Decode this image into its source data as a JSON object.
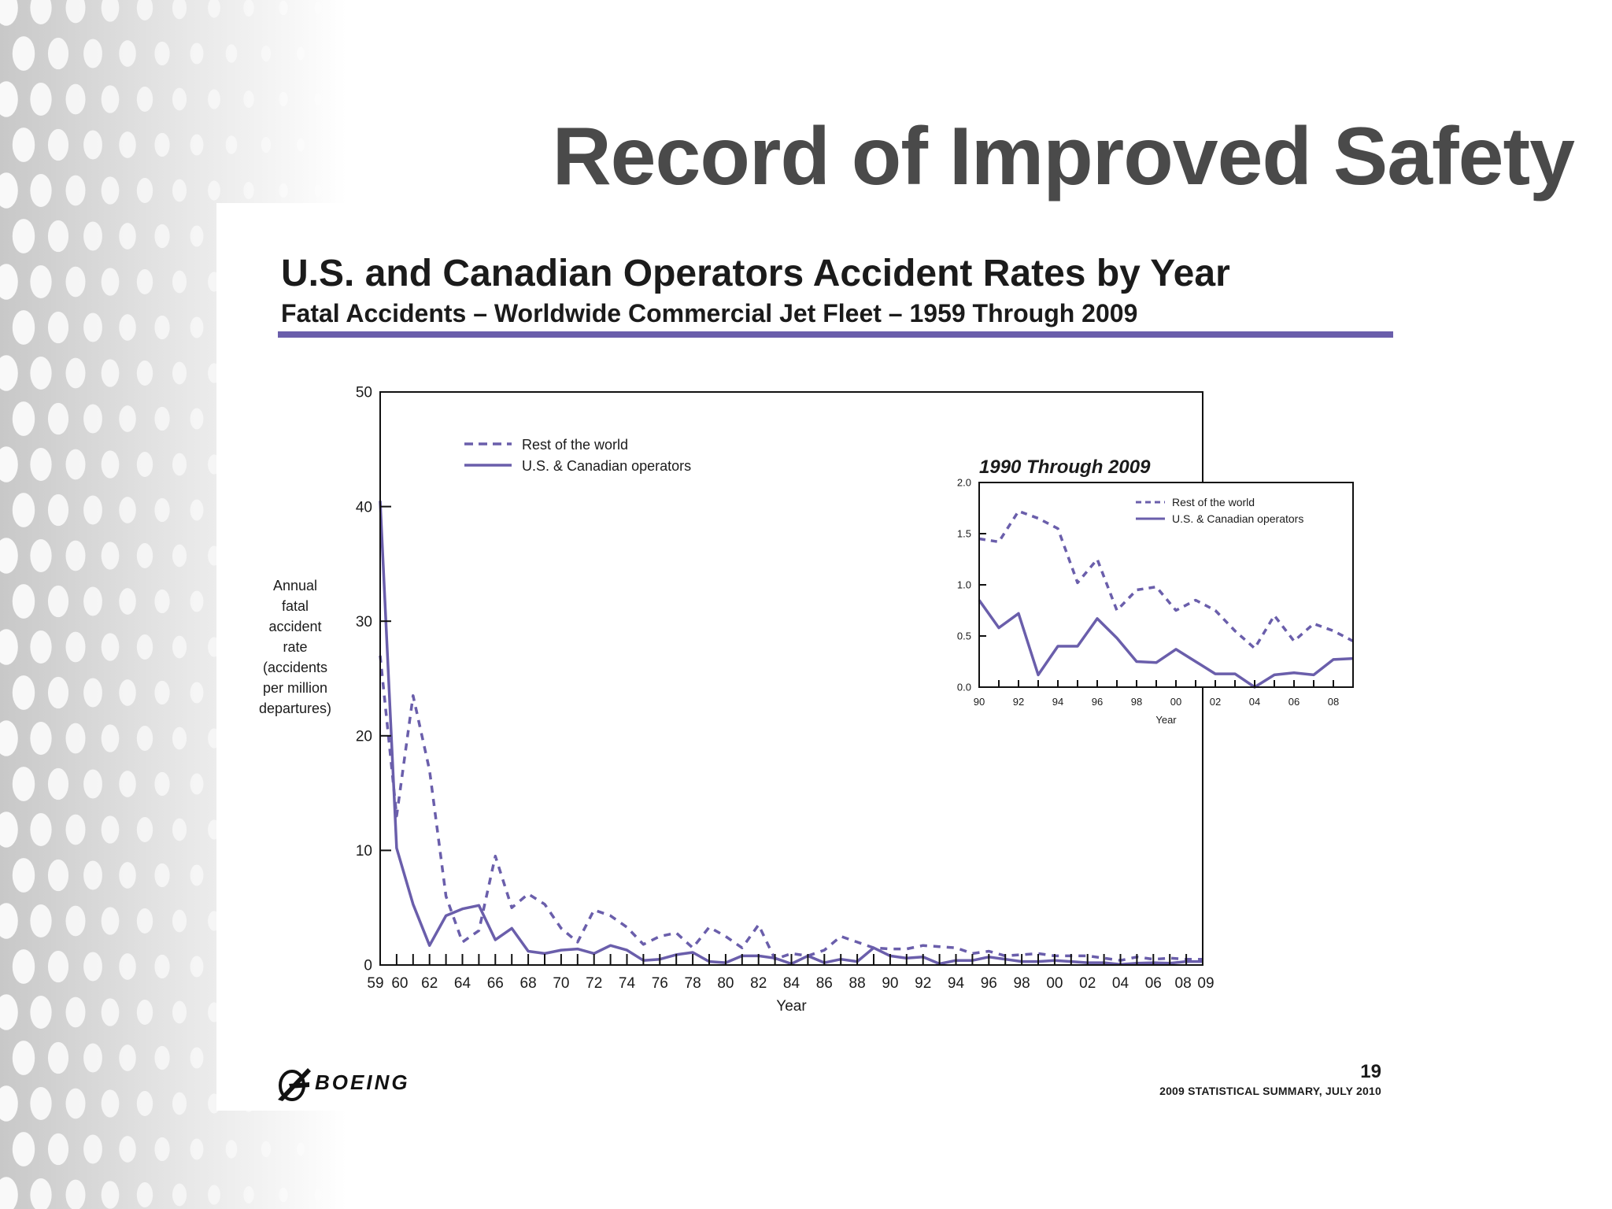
{
  "slide": {
    "title": "Record of Improved Safety"
  },
  "panel": {
    "title": "U.S. and Canadian Operators Accident Rates by Year",
    "subtitle": "Fatal Accidents – Worldwide Commercial Jet Fleet – 1959 Through 2009",
    "accent_color": "#6a5eab"
  },
  "footer": {
    "page_number": "19",
    "note": "2009 STATISTICAL SUMMARY, JULY 2010",
    "logo_text": "BOEING"
  },
  "chart_data": [
    {
      "type": "line",
      "title": "",
      "xlabel": "Year",
      "ylabel_lines": [
        "Annual",
        "fatal",
        "accident",
        "rate",
        "(accidents",
        "per million",
        "departures)"
      ],
      "ylim": [
        0,
        50
      ],
      "xlim": [
        1959,
        2009
      ],
      "y_ticks": [
        0,
        10,
        20,
        30,
        40,
        50
      ],
      "x_tick_labels": [
        {
          "year": 1959,
          "label": "59"
        },
        {
          "year": 1960,
          "label": "60"
        },
        {
          "year": 1962,
          "label": "62"
        },
        {
          "year": 1964,
          "label": "64"
        },
        {
          "year": 1966,
          "label": "66"
        },
        {
          "year": 1968,
          "label": "68"
        },
        {
          "year": 1970,
          "label": "70"
        },
        {
          "year": 1972,
          "label": "72"
        },
        {
          "year": 1974,
          "label": "74"
        },
        {
          "year": 1976,
          "label": "76"
        },
        {
          "year": 1978,
          "label": "78"
        },
        {
          "year": 1980,
          "label": "80"
        },
        {
          "year": 1982,
          "label": "82"
        },
        {
          "year": 1984,
          "label": "84"
        },
        {
          "year": 1986,
          "label": "86"
        },
        {
          "year": 1988,
          "label": "88"
        },
        {
          "year": 1990,
          "label": "90"
        },
        {
          "year": 1992,
          "label": "92"
        },
        {
          "year": 1994,
          "label": "94"
        },
        {
          "year": 1996,
          "label": "96"
        },
        {
          "year": 1998,
          "label": "98"
        },
        {
          "year": 2000,
          "label": "00"
        },
        {
          "year": 2002,
          "label": "02"
        },
        {
          "year": 2004,
          "label": "04"
        },
        {
          "year": 2006,
          "label": "06"
        },
        {
          "year": 2008,
          "label": "08"
        },
        {
          "year": 2009,
          "label": "09"
        }
      ],
      "legend_position": "top-left",
      "series": [
        {
          "name": "Rest of the world",
          "style": "dashed",
          "color": "#6a5eab",
          "x": [
            1959,
            1960,
            1961,
            1962,
            1963,
            1964,
            1965,
            1966,
            1967,
            1968,
            1969,
            1970,
            1971,
            1972,
            1973,
            1974,
            1975,
            1976,
            1977,
            1978,
            1979,
            1980,
            1981,
            1982,
            1983,
            1984,
            1985,
            1986,
            1987,
            1988,
            1989,
            1990,
            1991,
            1992,
            1993,
            1994,
            1995,
            1996,
            1997,
            1998,
            1999,
            2000,
            2001,
            2002,
            2003,
            2004,
            2005,
            2006,
            2007,
            2008,
            2009
          ],
          "y": [
            27,
            13,
            23.5,
            17,
            6,
            2,
            3,
            9.5,
            5,
            6.2,
            5.3,
            3.2,
            2,
            4.8,
            4.3,
            3.3,
            1.8,
            2.5,
            2.8,
            1.5,
            3.3,
            2.5,
            1.5,
            3.5,
            0.5,
            1,
            0.8,
            1.3,
            2.5,
            2,
            1.5,
            1.4,
            1.4,
            1.7,
            1.6,
            1.5,
            1,
            1.2,
            0.8,
            0.9,
            1,
            0.8,
            0.8,
            0.8,
            0.6,
            0.4,
            0.7,
            0.5,
            0.6,
            0.5,
            0.5
          ]
        },
        {
          "name": "U.S. & Canadian operators",
          "style": "solid",
          "color": "#6a5eab",
          "x": [
            1959,
            1960,
            1961,
            1962,
            1963,
            1964,
            1965,
            1966,
            1967,
            1968,
            1969,
            1970,
            1971,
            1972,
            1973,
            1974,
            1975,
            1976,
            1977,
            1978,
            1979,
            1980,
            1981,
            1982,
            1983,
            1984,
            1985,
            1986,
            1987,
            1988,
            1989,
            1990,
            1991,
            1992,
            1993,
            1994,
            1995,
            1996,
            1997,
            1998,
            1999,
            2000,
            2001,
            2002,
            2003,
            2004,
            2005,
            2006,
            2007,
            2008,
            2009
          ],
          "y": [
            40.5,
            10.2,
            5.3,
            1.7,
            4.3,
            4.9,
            5.2,
            2.2,
            3.2,
            1.2,
            1,
            1.3,
            1.4,
            1,
            1.7,
            1.3,
            0.4,
            0.5,
            0.9,
            1.1,
            0.3,
            0.2,
            0.8,
            0.8,
            0.6,
            0.1,
            0.8,
            0.2,
            0.5,
            0.3,
            1.5,
            0.8,
            0.6,
            0.7,
            0.1,
            0.4,
            0.4,
            0.7,
            0.5,
            0.3,
            0.3,
            0.4,
            0.3,
            0.2,
            0.2,
            0.05,
            0.15,
            0.2,
            0.15,
            0.3,
            0.3
          ]
        }
      ]
    },
    {
      "type": "line",
      "title": "1990 Through 2009",
      "xlabel": "Year",
      "ylim": [
        0,
        2.0
      ],
      "xlim": [
        1990,
        2009
      ],
      "y_ticks": [
        "0.0",
        "0.5",
        "1.0",
        "1.5",
        "2.0"
      ],
      "x_tick_labels": [
        {
          "year": 1990,
          "label": "90"
        },
        {
          "year": 1992,
          "label": "92"
        },
        {
          "year": 1994,
          "label": "94"
        },
        {
          "year": 1996,
          "label": "96"
        },
        {
          "year": 1998,
          "label": "98"
        },
        {
          "year": 2000,
          "label": "00"
        },
        {
          "year": 2002,
          "label": "02"
        },
        {
          "year": 2004,
          "label": "04"
        },
        {
          "year": 2006,
          "label": "06"
        },
        {
          "year": 2008,
          "label": "08"
        }
      ],
      "legend_position": "top-right",
      "series": [
        {
          "name": "Rest of the world",
          "style": "dashed",
          "color": "#6a5eab",
          "x": [
            1990,
            1991,
            1992,
            1993,
            1994,
            1995,
            1996,
            1997,
            1998,
            1999,
            2000,
            2001,
            2002,
            2003,
            2004,
            2005,
            2006,
            2007,
            2008,
            2009
          ],
          "y": [
            1.45,
            1.42,
            1.72,
            1.65,
            1.55,
            1.02,
            1.25,
            0.75,
            0.95,
            0.98,
            0.75,
            0.85,
            0.75,
            0.55,
            0.38,
            0.7,
            0.45,
            0.62,
            0.55,
            0.45
          ]
        },
        {
          "name": "U.S. & Canadian operators",
          "style": "solid",
          "color": "#6a5eab",
          "x": [
            1990,
            1991,
            1992,
            1993,
            1994,
            1995,
            1996,
            1997,
            1998,
            1999,
            2000,
            2001,
            2002,
            2003,
            2004,
            2005,
            2006,
            2007,
            2008,
            2009
          ],
          "y": [
            0.85,
            0.58,
            0.72,
            0.12,
            0.4,
            0.4,
            0.67,
            0.48,
            0.25,
            0.24,
            0.37,
            0.25,
            0.13,
            0.13,
            0.0,
            0.12,
            0.14,
            0.12,
            0.27,
            0.28
          ]
        }
      ]
    }
  ]
}
